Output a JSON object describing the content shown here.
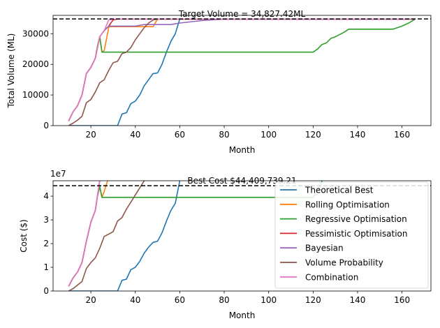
{
  "colors": {
    "theoretical_best": "#1f77b4",
    "rolling": "#ff7f0e",
    "regressive": "#2ca02c",
    "pessimistic": "#d62728",
    "bayesian": "#9467bd",
    "volume_probability": "#8c564b",
    "combination": "#e377c2"
  },
  "chart_data": [
    {
      "type": "line",
      "xlabel": "Month",
      "ylabel": "Total Volume (ML)",
      "xlim": [
        3,
        173
      ],
      "ylim": [
        0,
        36000
      ],
      "xticks": [
        20,
        40,
        60,
        80,
        100,
        120,
        140,
        160
      ],
      "yticks": [
        0,
        10000,
        20000,
        30000
      ],
      "ytick_labels": [
        "0",
        "10000",
        "20000",
        "30000"
      ],
      "grid": false,
      "reference_line": {
        "y": 34827.42,
        "style": "dashed",
        "label": "Target Volume = 34,827.42ML"
      },
      "series": [
        {
          "key": "theoretical_best",
          "x": [
            10,
            32,
            34,
            36,
            38,
            40,
            42,
            44,
            46,
            48,
            50,
            52,
            54,
            56,
            58,
            60,
            166
          ],
          "y": [
            0,
            0,
            3800,
            4200,
            7200,
            8000,
            10000,
            13000,
            15000,
            17000,
            17200,
            20000,
            24000,
            27500,
            30000,
            34800,
            34800
          ]
        },
        {
          "key": "rolling",
          "x": [
            10,
            12,
            14,
            16,
            18,
            20,
            22,
            23,
            24,
            25,
            26,
            28,
            28.5,
            48,
            50,
            166
          ],
          "y": [
            1500,
            4500,
            6500,
            10000,
            17000,
            19000,
            22000,
            26000,
            29000,
            24000,
            24500,
            32000,
            32300,
            32300,
            34800,
            34800
          ]
        },
        {
          "key": "regressive",
          "x": [
            10,
            12,
            14,
            16,
            18,
            20,
            22,
            23,
            24,
            25,
            120,
            122,
            124,
            126,
            128,
            130,
            134,
            136,
            156,
            160,
            163,
            166
          ],
          "y": [
            1500,
            4500,
            6500,
            10000,
            17000,
            19000,
            22000,
            26000,
            29000,
            24000,
            24000,
            25000,
            26500,
            27000,
            28500,
            29000,
            30500,
            31500,
            31500,
            32500,
            33500,
            34800
          ]
        },
        {
          "key": "pessimistic",
          "x": [
            10,
            12,
            14,
            16,
            18,
            20,
            22,
            24,
            26,
            28,
            30,
            32,
            166
          ],
          "y": [
            1500,
            4500,
            6500,
            10000,
            17000,
            19000,
            22000,
            29000,
            31000,
            32500,
            34500,
            34800,
            34800
          ]
        },
        {
          "key": "bayesian",
          "x": [
            10,
            12,
            14,
            16,
            18,
            20,
            22,
            24,
            26,
            28,
            30,
            40,
            44,
            56,
            60,
            70,
            80,
            166
          ],
          "y": [
            1500,
            4500,
            6500,
            10000,
            17000,
            19000,
            22000,
            29000,
            31000,
            32500,
            32500,
            32500,
            33000,
            33000,
            33500,
            34300,
            34800,
            34800
          ]
        },
        {
          "key": "volume_probability",
          "x": [
            10,
            12,
            14,
            16,
            18,
            20,
            22,
            24,
            26,
            28,
            30,
            32,
            34,
            36,
            38,
            40,
            42,
            44,
            46,
            48,
            50,
            166
          ],
          "y": [
            0,
            800,
            1800,
            3000,
            7500,
            8500,
            11000,
            14000,
            15000,
            18000,
            20500,
            21000,
            23500,
            24000,
            25500,
            28000,
            30000,
            32000,
            33500,
            34500,
            34800,
            34800
          ]
        },
        {
          "key": "combination",
          "x": [
            10,
            12,
            14,
            16,
            18,
            20,
            22,
            24,
            26,
            28,
            30,
            166
          ],
          "y": [
            1500,
            4500,
            6500,
            10000,
            17000,
            19000,
            22000,
            29000,
            31000,
            34500,
            34800,
            34800
          ]
        }
      ]
    },
    {
      "type": "line",
      "xlabel": "Month",
      "ylabel": "Cost ($)",
      "offset_label": "1e7",
      "xlim": [
        3,
        173
      ],
      "ylim": [
        0,
        4.65
      ],
      "xticks": [
        20,
        40,
        60,
        80,
        100,
        120,
        140,
        160
      ],
      "yticks": [
        0,
        1,
        2,
        3,
        4
      ],
      "ytick_labels": [
        "0",
        "1",
        "2",
        "3",
        "4"
      ],
      "grid": false,
      "reference_line": {
        "y": 4.4409739,
        "style": "dashed",
        "label": "Best Cost $44,409,739.21"
      },
      "legend": {
        "placement": "lower right"
      },
      "series": [
        {
          "key": "theoretical_best",
          "name": "Theoretical Best",
          "x": [
            10,
            32,
            34,
            36,
            38,
            40,
            42,
            44,
            46,
            48,
            50,
            52,
            54,
            56,
            58,
            60
          ],
          "y": [
            0,
            0,
            0.45,
            0.5,
            0.9,
            1.0,
            1.25,
            1.6,
            1.85,
            2.05,
            2.1,
            2.45,
            2.95,
            3.4,
            3.7,
            4.65
          ]
        },
        {
          "key": "rolling",
          "name": "Rolling Optimisation",
          "x": [
            10,
            12,
            14,
            16,
            18,
            20,
            22,
            23,
            24,
            25,
            26,
            27.5
          ],
          "y": [
            0.2,
            0.55,
            0.8,
            1.2,
            2.1,
            2.9,
            3.4,
            4.0,
            4.4,
            3.95,
            4.2,
            4.65
          ]
        },
        {
          "key": "regressive",
          "name": "Regressive Optimisation",
          "x": [
            10,
            12,
            14,
            16,
            18,
            20,
            22,
            23,
            24,
            25,
            120,
            122,
            124
          ],
          "y": [
            0.2,
            0.55,
            0.8,
            1.2,
            2.1,
            2.9,
            3.4,
            4.0,
            4.4,
            3.95,
            3.95,
            4.2,
            4.65
          ]
        },
        {
          "key": "pessimistic",
          "name": "Pessimistic Optimisation",
          "x": [
            10,
            12,
            14,
            16,
            18,
            20,
            22,
            24
          ],
          "y": [
            0.2,
            0.55,
            0.8,
            1.2,
            2.1,
            2.9,
            3.4,
            4.65
          ]
        },
        {
          "key": "bayesian",
          "name": "Bayesian",
          "x": [
            10,
            12,
            14,
            16,
            18,
            20,
            22,
            24
          ],
          "y": [
            0.2,
            0.55,
            0.8,
            1.2,
            2.1,
            2.9,
            3.4,
            4.65
          ]
        },
        {
          "key": "volume_probability",
          "name": "Volume Probability",
          "x": [
            10,
            12,
            14,
            16,
            18,
            20,
            22,
            24,
            26,
            28,
            30,
            32,
            34,
            36,
            38,
            40,
            42,
            44
          ],
          "y": [
            0,
            0.1,
            0.25,
            0.4,
            0.95,
            1.2,
            1.4,
            1.8,
            2.3,
            2.4,
            2.5,
            2.95,
            3.1,
            3.45,
            3.75,
            4.05,
            4.35,
            4.65
          ]
        },
        {
          "key": "combination",
          "name": "Combination",
          "x": [
            10,
            12,
            14,
            16,
            18,
            20,
            22,
            24
          ],
          "y": [
            0.2,
            0.55,
            0.8,
            1.2,
            2.1,
            2.9,
            3.4,
            4.65
          ]
        }
      ]
    }
  ]
}
